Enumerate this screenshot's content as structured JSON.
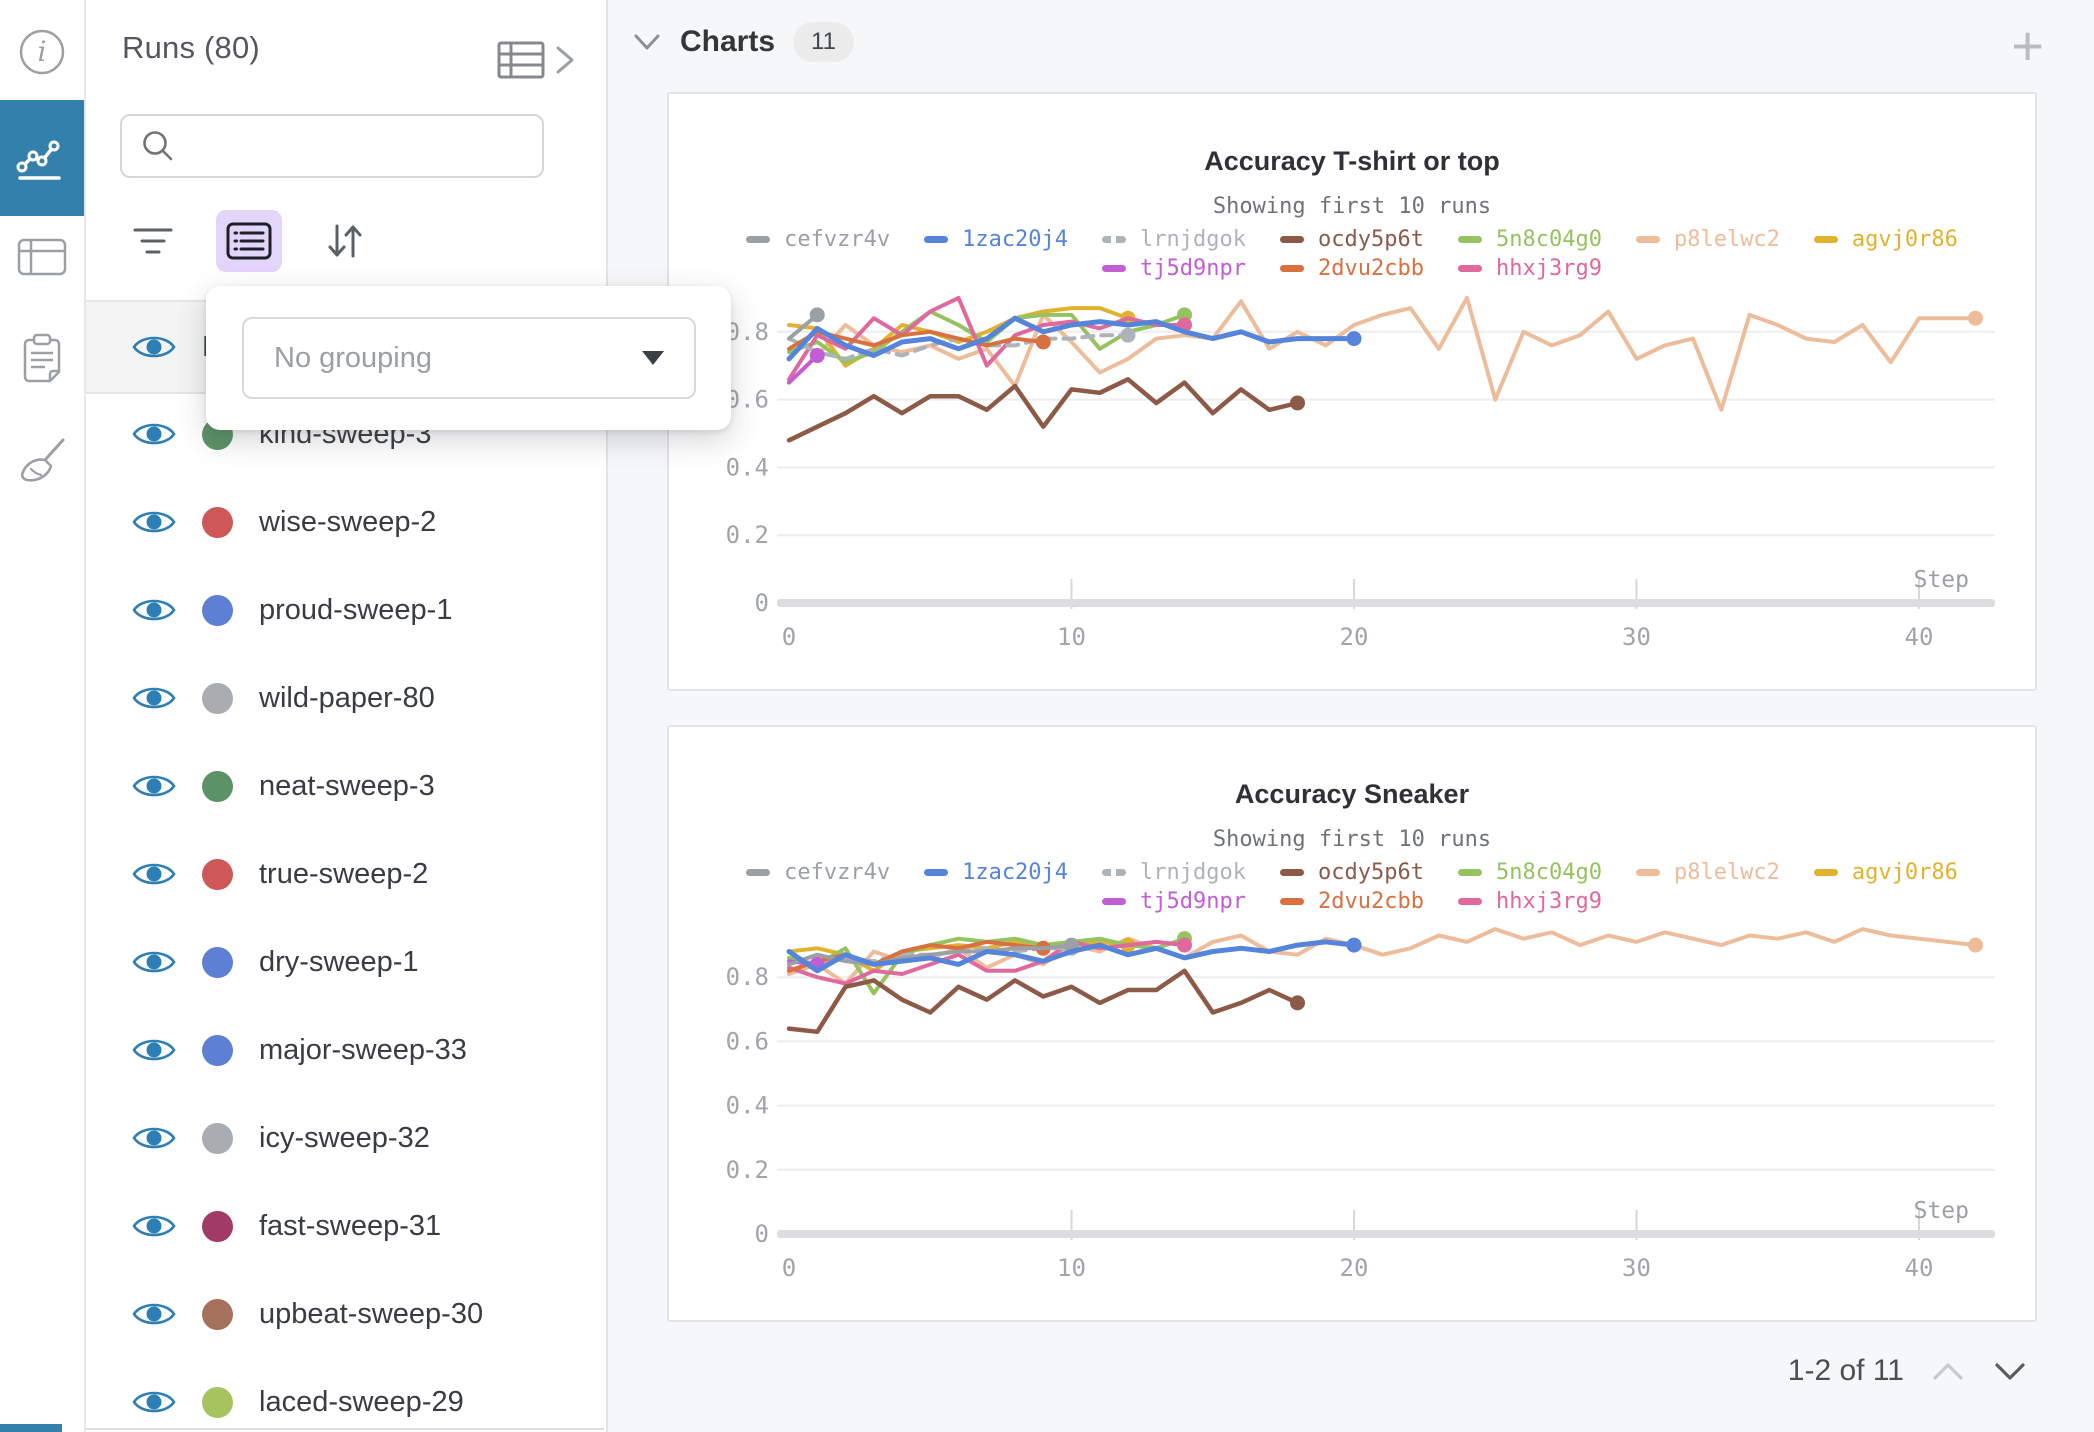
{
  "sidebar": {
    "items": [
      {
        "icon": "info-icon",
        "active": false
      },
      {
        "icon": "line-chart-icon",
        "active": true
      },
      {
        "icon": "table-icon",
        "active": false
      },
      {
        "icon": "clipboard-icon",
        "active": false
      },
      {
        "icon": "broom-icon",
        "active": false
      }
    ]
  },
  "runs_panel": {
    "title": "Runs (80)",
    "search": {
      "placeholder": "",
      "value": ""
    },
    "header_row": {
      "label": "Name"
    },
    "grouping_popup": {
      "value": "No grouping"
    },
    "accent": {
      "group_button_bg": "#e3d5fa",
      "eye_color": "#2d7fb5",
      "active_nav": "#3380ad"
    },
    "runs": [
      {
        "name": "kind-sweep-3",
        "color": "#5b9367"
      },
      {
        "name": "wise-sweep-2",
        "color": "#ce5757"
      },
      {
        "name": "proud-sweep-1",
        "color": "#5d80d4"
      },
      {
        "name": "wild-paper-80",
        "color": "#a9acb0"
      },
      {
        "name": "neat-sweep-3",
        "color": "#5b9367"
      },
      {
        "name": "true-sweep-2",
        "color": "#ce5757"
      },
      {
        "name": "dry-sweep-1",
        "color": "#5d80d4"
      },
      {
        "name": "major-sweep-33",
        "color": "#5d80d4"
      },
      {
        "name": "icy-sweep-32",
        "color": "#a9acb0"
      },
      {
        "name": "fast-sweep-31",
        "color": "#a23a68"
      },
      {
        "name": "upbeat-sweep-30",
        "color": "#a5715c"
      },
      {
        "name": "laced-sweep-29",
        "color": "#a7c35f"
      }
    ]
  },
  "main": {
    "header": {
      "label": "Charts",
      "count": "11"
    },
    "pagination": {
      "label": "1-2 of 11"
    }
  },
  "chart_data": [
    {
      "type": "line",
      "title": "Accuracy T-shirt or top",
      "subtitle": "Showing first 10 runs",
      "xlabel": "Step",
      "ylabel": "",
      "ylim": [
        0,
        0.97
      ],
      "xlim": [
        0,
        43
      ],
      "yticks": [
        0,
        0.2,
        0.4,
        0.6,
        0.8
      ],
      "xticks": [
        0,
        10,
        20,
        30,
        40
      ],
      "grid": true,
      "legend_position": "top",
      "series": [
        {
          "name": "cefvzr4v",
          "color": "#9aa0a6",
          "width": 4,
          "dash": false,
          "x0": 0,
          "y": [
            0.78,
            0.85
          ]
        },
        {
          "name": "1zac20j4",
          "color": "#5584db",
          "width": 5,
          "dash": false,
          "x0": 0,
          "y": [
            0.72,
            0.81,
            0.76,
            0.73,
            0.77,
            0.78,
            0.75,
            0.78,
            0.84,
            0.8,
            0.82,
            0.83,
            0.82,
            0.83,
            0.8,
            0.78,
            0.8,
            0.77,
            0.78,
            0.78,
            0.78
          ]
        },
        {
          "name": "lrnjdgok",
          "color": "#aeb3b9",
          "width": 4,
          "dash": true,
          "x0": 0,
          "y": [
            0.78,
            0.74,
            0.72,
            0.75,
            0.73,
            0.76,
            0.78,
            0.76,
            0.76,
            0.78,
            0.78,
            0.79,
            0.79
          ]
        },
        {
          "name": "ocdy5p6t",
          "color": "#8d5a47",
          "width": 4.5,
          "dash": false,
          "x0": 0,
          "y": [
            0.48,
            0.52,
            0.56,
            0.61,
            0.56,
            0.61,
            0.61,
            0.57,
            0.64,
            0.52,
            0.63,
            0.62,
            0.66,
            0.59,
            0.65,
            0.56,
            0.63,
            0.57,
            0.59
          ]
        },
        {
          "name": "5n8c04g0",
          "color": "#95c360",
          "width": 4,
          "dash": false,
          "x0": 0,
          "y": [
            0.74,
            0.77,
            0.71,
            0.74,
            0.8,
            0.86,
            0.82,
            0.77,
            0.84,
            0.85,
            0.85,
            0.75,
            0.8,
            0.82,
            0.85
          ]
        },
        {
          "name": "p8lelwc2",
          "color": "#edbd9b",
          "width": 4,
          "dash": false,
          "x0": 0,
          "y": [
            0.65,
            0.73,
            0.82,
            0.76,
            0.74,
            0.76,
            0.72,
            0.75,
            0.64,
            0.85,
            0.77,
            0.68,
            0.72,
            0.78,
            0.79,
            0.78,
            0.89,
            0.75,
            0.8,
            0.76,
            0.82,
            0.85,
            0.87,
            0.75,
            0.9,
            0.6,
            0.8,
            0.76,
            0.79,
            0.86,
            0.72,
            0.76,
            0.78,
            0.57,
            0.85,
            0.82,
            0.78,
            0.77,
            0.82,
            0.71,
            0.84,
            0.84,
            0.84
          ]
        },
        {
          "name": "agvj0r86",
          "color": "#e2b22f",
          "width": 4,
          "dash": false,
          "x0": 0,
          "y": [
            0.82,
            0.81,
            0.7,
            0.75,
            0.82,
            0.8,
            0.77,
            0.8,
            0.84,
            0.86,
            0.87,
            0.87,
            0.84
          ]
        },
        {
          "name": "tj5d9npr",
          "color": "#c25dd4",
          "width": 4,
          "dash": false,
          "x0": 0,
          "y": [
            0.65,
            0.73
          ]
        },
        {
          "name": "2dvu2cbb",
          "color": "#d8703f",
          "width": 4,
          "dash": false,
          "x0": 0,
          "y": [
            0.75,
            0.8,
            0.78,
            0.76,
            0.79,
            0.8,
            0.78,
            0.76,
            0.78,
            0.77
          ]
        },
        {
          "name": "hhxj3rg9",
          "color": "#e0689e",
          "width": 4,
          "dash": false,
          "x0": 0,
          "y": [
            0.66,
            0.79,
            0.75,
            0.84,
            0.79,
            0.86,
            0.9,
            0.7,
            0.79,
            0.82,
            0.83,
            0.81,
            0.84,
            0.82,
            0.82
          ]
        }
      ]
    },
    {
      "type": "line",
      "title": "Accuracy Sneaker",
      "subtitle": "Showing first 10 runs",
      "xlabel": "Step",
      "ylabel": "",
      "ylim": [
        0,
        0.97
      ],
      "xlim": [
        0,
        43
      ],
      "yticks": [
        0,
        0.2,
        0.4,
        0.6,
        0.8
      ],
      "xticks": [
        0,
        10,
        20,
        30,
        40
      ],
      "grid": true,
      "legend_position": "top",
      "series": [
        {
          "name": "cefvzr4v",
          "color": "#9aa0a6",
          "width": 4,
          "dash": false,
          "x0": 0,
          "y": [
            0.84,
            0.87,
            0.85,
            0.84,
            0.86,
            0.87,
            0.88,
            0.88,
            0.89,
            0.89,
            0.9
          ]
        },
        {
          "name": "1zac20j4",
          "color": "#5584db",
          "width": 5,
          "dash": false,
          "x0": 0,
          "y": [
            0.88,
            0.82,
            0.87,
            0.84,
            0.85,
            0.86,
            0.84,
            0.88,
            0.87,
            0.85,
            0.88,
            0.9,
            0.87,
            0.89,
            0.86,
            0.88,
            0.89,
            0.88,
            0.9,
            0.91,
            0.9
          ]
        },
        {
          "name": "lrnjdgok",
          "color": "#aeb3b9",
          "width": 4,
          "dash": true,
          "x0": 0,
          "y": [
            0.85,
            0.84,
            0.86,
            0.85,
            0.87,
            0.87,
            0.88,
            0.89,
            0.88,
            0.89,
            0.89
          ]
        },
        {
          "name": "ocdy5p6t",
          "color": "#8d5a47",
          "width": 4.5,
          "dash": false,
          "x0": 0,
          "y": [
            0.64,
            0.63,
            0.77,
            0.79,
            0.73,
            0.69,
            0.77,
            0.73,
            0.79,
            0.74,
            0.77,
            0.72,
            0.76,
            0.76,
            0.82,
            0.69,
            0.72,
            0.76,
            0.72
          ]
        },
        {
          "name": "5n8c04g0",
          "color": "#95c360",
          "width": 4,
          "dash": false,
          "x0": 0,
          "y": [
            0.86,
            0.84,
            0.89,
            0.75,
            0.87,
            0.9,
            0.92,
            0.91,
            0.92,
            0.9,
            0.91,
            0.92,
            0.9,
            0.89,
            0.92
          ]
        },
        {
          "name": "p8lelwc2",
          "color": "#edbd9b",
          "width": 4,
          "dash": false,
          "x0": 0,
          "y": [
            0.81,
            0.84,
            0.78,
            0.88,
            0.85,
            0.86,
            0.89,
            0.83,
            0.87,
            0.84,
            0.9,
            0.88,
            0.92,
            0.89,
            0.86,
            0.91,
            0.93,
            0.88,
            0.87,
            0.92,
            0.9,
            0.87,
            0.89,
            0.93,
            0.91,
            0.95,
            0.92,
            0.94,
            0.9,
            0.93,
            0.91,
            0.94,
            0.92,
            0.9,
            0.93,
            0.92,
            0.94,
            0.91,
            0.95,
            0.93,
            0.92,
            0.91,
            0.9
          ]
        },
        {
          "name": "agvj0r86",
          "color": "#e2b22f",
          "width": 4,
          "dash": false,
          "x0": 0,
          "y": [
            0.88,
            0.89,
            0.87,
            0.82,
            0.88,
            0.89,
            0.9,
            0.89,
            0.91,
            0.9,
            0.9,
            0.91,
            0.9
          ]
        },
        {
          "name": "tj5d9npr",
          "color": "#c25dd4",
          "width": 4,
          "dash": false,
          "x0": 0,
          "y": [
            0.85,
            0.84
          ]
        },
        {
          "name": "2dvu2cbb",
          "color": "#d8703f",
          "width": 4,
          "dash": false,
          "x0": 0,
          "y": [
            0.82,
            0.85,
            0.87,
            0.84,
            0.88,
            0.9,
            0.89,
            0.91,
            0.9,
            0.89
          ]
        },
        {
          "name": "hhxj3rg9",
          "color": "#e0689e",
          "width": 4,
          "dash": false,
          "x0": 0,
          "y": [
            0.83,
            0.8,
            0.78,
            0.82,
            0.81,
            0.84,
            0.87,
            0.82,
            0.82,
            0.85,
            0.91,
            0.89,
            0.9,
            0.91,
            0.9
          ]
        }
      ]
    }
  ]
}
